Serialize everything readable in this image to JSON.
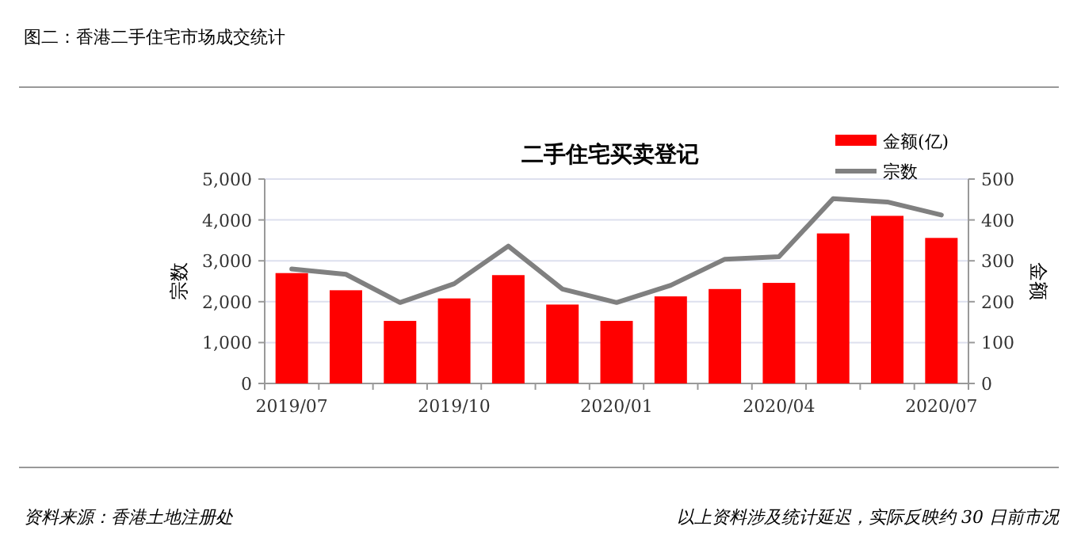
{
  "chart_data": {
    "type": "bar",
    "title": "二手住宅买卖登记",
    "annotations": [
      "图二：香港二手住宅市场成交统计",
      "资料来源：香港土地注册处",
      "以上资料涉及统计延迟，实际反映约 30 日前市况"
    ],
    "categories": [
      "2019/07",
      null,
      null,
      "2019/10",
      null,
      null,
      "2020/01",
      null,
      null,
      "2020/04",
      null,
      null,
      "2020/07"
    ],
    "series": [
      {
        "name": "金额(亿)",
        "axis": "y2",
        "color": "#ff0000",
        "values": [
          270,
          228,
          153,
          208,
          265,
          193,
          153,
          213,
          231,
          246,
          367,
          410,
          356
        ]
      },
      {
        "name": "宗数",
        "type": "line",
        "color": "#808080",
        "values": [
          2800,
          2670,
          1980,
          2440,
          3360,
          2310,
          1980,
          2400,
          3040,
          3100,
          4520,
          4440,
          4120
        ]
      }
    ],
    "ylabel": "宗数",
    "y2label": "金额",
    "ylim": [
      0,
      5000
    ],
    "yticks": [
      0,
      {
        "value": 1000,
        "label": "1,000"
      },
      {
        "value": 2000,
        "label": "2,000"
      },
      {
        "value": 3000,
        "label": "3,000"
      },
      {
        "value": 4000,
        "label": "4,000"
      },
      {
        "value": 5000,
        "label": "5,000"
      }
    ],
    "y2lim": [
      0,
      500
    ],
    "y2ticks": [
      0,
      100,
      200,
      300,
      400,
      500
    ],
    "grid": "y",
    "legend": "top right"
  }
}
